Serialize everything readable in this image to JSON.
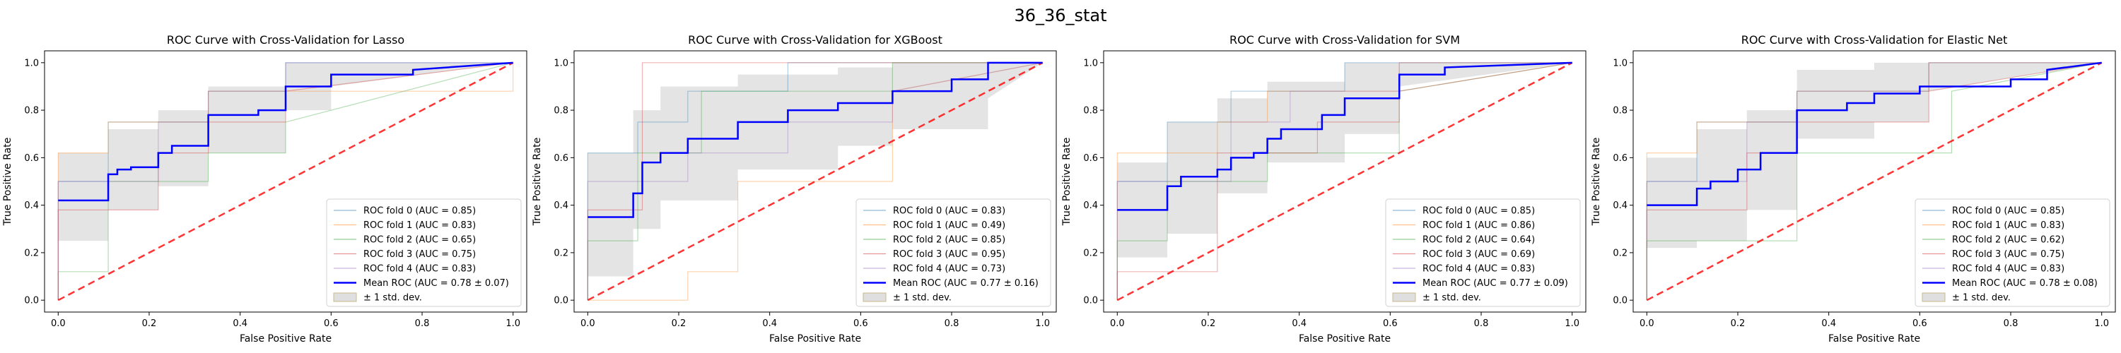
{
  "figure_title": "36_36_stat",
  "colors": {
    "fold": [
      "#1f77b4",
      "#ff7f0e",
      "#2ca02c",
      "#d62728",
      "#9467bd"
    ],
    "mean": "#0000ff",
    "chance": "#ff0000",
    "std_fill": "#bfbfbf",
    "legend_std_edge": "#c8b88a"
  },
  "chart_data": [
    {
      "type": "line",
      "title": "ROC Curve with Cross-Validation for Lasso",
      "xlabel": "False Positive Rate",
      "ylabel": "True Positive Rate",
      "xlim": [
        -0.03,
        1.03
      ],
      "ylim": [
        -0.05,
        1.05
      ],
      "xticks": [
        "0.0",
        "0.2",
        "0.4",
        "0.6",
        "0.8",
        "1.0"
      ],
      "yticks": [
        "0.0",
        "0.2",
        "0.4",
        "0.6",
        "0.8",
        "1.0"
      ],
      "legend_position": "lower right",
      "legend": [
        "ROC fold 0 (AUC = 0.85)",
        "ROC fold 1 (AUC = 0.83)",
        "ROC fold 2 (AUC = 0.65)",
        "ROC fold 3 (AUC = 0.75)",
        "ROC fold 4 (AUC = 0.83)",
        "Mean ROC (AUC = 0.78 ± 0.07)",
        "± 1 std. dev."
      ],
      "series": [
        {
          "name": "ROC fold 0 (AUC = 0.85)",
          "x": [
            0,
            0,
            0.11,
            0.11,
            0.33,
            0.33,
            0.5,
            0.5,
            1
          ],
          "y": [
            0,
            0.5,
            0.5,
            0.75,
            0.75,
            0.88,
            0.88,
            1,
            1
          ]
        },
        {
          "name": "ROC fold 1 (AUC = 0.83)",
          "x": [
            0,
            0,
            0.11,
            0.11,
            0.33,
            0.33,
            1,
            1
          ],
          "y": [
            0,
            0.62,
            0.62,
            0.75,
            0.75,
            0.88,
            0.88,
            1
          ]
        },
        {
          "name": "ROC fold 2 (AUC = 0.65)",
          "x": [
            0,
            0,
            0.11,
            0.11,
            0.33,
            0.33,
            0.5,
            0.5,
            1
          ],
          "y": [
            0,
            0.12,
            0.12,
            0.5,
            0.5,
            0.62,
            0.62,
            0.75,
            1
          ]
        },
        {
          "name": "ROC fold 3 (AUC = 0.75)",
          "x": [
            0,
            0,
            0.22,
            0.22,
            0.33,
            0.33,
            0.5,
            0.5,
            1
          ],
          "y": [
            0,
            0.38,
            0.38,
            0.62,
            0.62,
            0.75,
            0.75,
            0.88,
            1
          ]
        },
        {
          "name": "ROC fold 4 (AUC = 0.83)",
          "x": [
            0,
            0,
            0.22,
            0.22,
            0.33,
            0.33,
            0.5,
            0.5,
            1
          ],
          "y": [
            0,
            0.5,
            0.5,
            0.75,
            0.75,
            0.88,
            0.88,
            1,
            1
          ]
        },
        {
          "name": "Mean ROC (AUC = 0.78 ± 0.07)",
          "x": [
            0,
            0.11,
            0.11,
            0.13,
            0.13,
            0.16,
            0.16,
            0.22,
            0.22,
            0.25,
            0.25,
            0.33,
            0.33,
            0.44,
            0.44,
            0.5,
            0.5,
            0.6,
            0.6,
            0.78,
            0.78,
            1
          ],
          "y": [
            0.42,
            0.42,
            0.53,
            0.53,
            0.55,
            0.55,
            0.56,
            0.56,
            0.62,
            0.62,
            0.65,
            0.65,
            0.78,
            0.78,
            0.8,
            0.8,
            0.9,
            0.9,
            0.95,
            0.95,
            0.97,
            1
          ]
        },
        {
          "name": "± 1 std. dev.",
          "x": [
            0,
            0.11,
            0.11,
            0.22,
            0.22,
            0.33,
            0.33,
            0.5,
            0.5,
            0.6,
            0.6,
            1
          ],
          "upper": [
            0.62,
            0.62,
            0.72,
            0.72,
            0.8,
            0.8,
            0.9,
            0.9,
            1,
            1,
            1,
            1
          ],
          "lower": [
            0.25,
            0.25,
            0.38,
            0.38,
            0.48,
            0.48,
            0.62,
            0.62,
            0.8,
            0.8,
            0.9,
            1
          ]
        }
      ]
    },
    {
      "type": "line",
      "title": "ROC Curve with Cross-Validation for XGBoost",
      "xlabel": "False Positive Rate",
      "ylabel": "True Positive Rate",
      "xlim": [
        -0.03,
        1.03
      ],
      "ylim": [
        -0.05,
        1.05
      ],
      "xticks": [
        "0.0",
        "0.2",
        "0.4",
        "0.6",
        "0.8",
        "1.0"
      ],
      "yticks": [
        "0.0",
        "0.2",
        "0.4",
        "0.6",
        "0.8",
        "1.0"
      ],
      "legend_position": "lower right",
      "legend": [
        "ROC fold 0 (AUC = 0.83)",
        "ROC fold 1 (AUC = 0.49)",
        "ROC fold 2 (AUC = 0.85)",
        "ROC fold 3 (AUC = 0.95)",
        "ROC fold 4 (AUC = 0.73)",
        "Mean ROC (AUC = 0.77 ± 0.16)",
        "± 1 std. dev."
      ],
      "series": [
        {
          "name": "ROC fold 0 (AUC = 0.83)",
          "x": [
            0,
            0,
            0.11,
            0.11,
            0.22,
            0.22,
            0.44,
            0.44,
            1
          ],
          "y": [
            0,
            0.62,
            0.62,
            0.75,
            0.75,
            0.88,
            0.88,
            1,
            1
          ]
        },
        {
          "name": "ROC fold 1 (AUC = 0.49)",
          "x": [
            0,
            0.22,
            0.22,
            0.33,
            0.33,
            0.67,
            0.67,
            1
          ],
          "y": [
            0,
            0,
            0.12,
            0.12,
            0.5,
            0.5,
            0.88,
            1
          ]
        },
        {
          "name": "ROC fold 2 (AUC = 0.85)",
          "x": [
            0,
            0,
            0.11,
            0.11,
            0.25,
            0.25,
            0.67,
            0.67,
            1
          ],
          "y": [
            0,
            0.25,
            0.25,
            0.62,
            0.62,
            0.88,
            0.88,
            1,
            1
          ]
        },
        {
          "name": "ROC fold 3 (AUC = 0.95)",
          "x": [
            0,
            0,
            0.12,
            0.12,
            0.67,
            0.67,
            1
          ],
          "y": [
            0,
            0.38,
            0.38,
            1,
            1,
            1,
            1
          ]
        },
        {
          "name": "ROC fold 4 (AUC = 0.73)",
          "x": [
            0,
            0,
            0.22,
            0.22,
            0.44,
            0.44,
            0.67,
            0.67,
            1
          ],
          "y": [
            0,
            0.5,
            0.5,
            0.62,
            0.62,
            0.75,
            0.75,
            0.88,
            1
          ]
        },
        {
          "name": "Mean ROC (AUC = 0.77 ± 0.16)",
          "x": [
            0,
            0.1,
            0.1,
            0.12,
            0.12,
            0.16,
            0.16,
            0.22,
            0.22,
            0.33,
            0.33,
            0.44,
            0.44,
            0.55,
            0.55,
            0.67,
            0.67,
            0.8,
            0.8,
            0.88,
            0.88,
            1
          ],
          "y": [
            0.35,
            0.35,
            0.45,
            0.45,
            0.58,
            0.58,
            0.62,
            0.62,
            0.68,
            0.68,
            0.75,
            0.75,
            0.8,
            0.8,
            0.83,
            0.83,
            0.88,
            0.88,
            0.93,
            0.93,
            1,
            1
          ]
        },
        {
          "name": "± 1 std. dev.",
          "x": [
            0,
            0.1,
            0.1,
            0.16,
            0.16,
            0.33,
            0.33,
            0.55,
            0.55,
            0.67,
            0.67,
            0.88,
            0.88,
            1
          ],
          "upper": [
            0.62,
            0.62,
            0.8,
            0.8,
            0.9,
            0.9,
            0.95,
            0.95,
            0.98,
            0.98,
            1,
            1,
            1,
            1
          ],
          "lower": [
            0.1,
            0.1,
            0.3,
            0.3,
            0.42,
            0.42,
            0.55,
            0.55,
            0.65,
            0.65,
            0.72,
            0.72,
            0.85,
            1
          ]
        }
      ]
    },
    {
      "type": "line",
      "title": "ROC Curve with Cross-Validation for SVM",
      "xlabel": "False Positive Rate",
      "ylabel": "True Positive Rate",
      "xlim": [
        -0.03,
        1.03
      ],
      "ylim": [
        -0.05,
        1.05
      ],
      "xticks": [
        "0.0",
        "0.2",
        "0.4",
        "0.6",
        "0.8",
        "1.0"
      ],
      "yticks": [
        "0.0",
        "0.2",
        "0.4",
        "0.6",
        "0.8",
        "1.0"
      ],
      "legend_position": "lower right",
      "legend": [
        "ROC fold 0 (AUC = 0.85)",
        "ROC fold 1 (AUC = 0.86)",
        "ROC fold 2 (AUC = 0.64)",
        "ROC fold 3 (AUC = 0.69)",
        "ROC fold 4 (AUC = 0.83)",
        "Mean ROC (AUC = 0.77 ± 0.09)",
        "± 1 std. dev."
      ],
      "series": [
        {
          "name": "ROC fold 0 (AUC = 0.85)",
          "x": [
            0,
            0,
            0.11,
            0.11,
            0.25,
            0.25,
            0.5,
            0.5,
            1
          ],
          "y": [
            0,
            0.5,
            0.5,
            0.75,
            0.75,
            0.88,
            0.88,
            1,
            1
          ]
        },
        {
          "name": "ROC fold 1 (AUC = 0.86)",
          "x": [
            0,
            0,
            0.22,
            0.22,
            0.33,
            0.33,
            0.62,
            0.62,
            1
          ],
          "y": [
            0,
            0.62,
            0.62,
            0.75,
            0.75,
            0.88,
            0.88,
            1,
            1
          ]
        },
        {
          "name": "ROC fold 2 (AUC = 0.64)",
          "x": [
            0,
            0,
            0.11,
            0.11,
            0.33,
            0.33,
            0.62,
            0.62,
            1
          ],
          "y": [
            0,
            0.25,
            0.25,
            0.5,
            0.5,
            0.62,
            0.62,
            0.88,
            1
          ]
        },
        {
          "name": "ROC fold 3 (AUC = 0.69)",
          "x": [
            0,
            0,
            0.22,
            0.22,
            0.44,
            0.44,
            0.62,
            0.62,
            1
          ],
          "y": [
            0,
            0.12,
            0.12,
            0.62,
            0.62,
            0.75,
            0.75,
            0.88,
            1
          ]
        },
        {
          "name": "ROC fold 4 (AUC = 0.83)",
          "x": [
            0,
            0,
            0.25,
            0.25,
            0.38,
            0.38,
            0.62,
            0.62,
            1
          ],
          "y": [
            0,
            0.5,
            0.5,
            0.75,
            0.75,
            0.88,
            0.88,
            1,
            1
          ]
        },
        {
          "name": "Mean ROC (AUC = 0.77 ± 0.09)",
          "x": [
            0,
            0.11,
            0.11,
            0.14,
            0.14,
            0.22,
            0.22,
            0.25,
            0.25,
            0.3,
            0.3,
            0.33,
            0.33,
            0.36,
            0.36,
            0.45,
            0.45,
            0.5,
            0.5,
            0.62,
            0.62,
            0.72,
            0.72,
            1
          ],
          "y": [
            0.38,
            0.38,
            0.48,
            0.48,
            0.52,
            0.52,
            0.55,
            0.55,
            0.6,
            0.6,
            0.62,
            0.62,
            0.68,
            0.68,
            0.72,
            0.72,
            0.78,
            0.78,
            0.85,
            0.85,
            0.95,
            0.95,
            0.98,
            1
          ]
        },
        {
          "name": "± 1 std. dev.",
          "x": [
            0,
            0.11,
            0.11,
            0.22,
            0.22,
            0.33,
            0.33,
            0.5,
            0.5,
            0.62,
            0.62,
            1
          ],
          "upper": [
            0.58,
            0.58,
            0.75,
            0.75,
            0.85,
            0.85,
            0.92,
            0.92,
            1,
            1,
            1,
            1
          ],
          "lower": [
            0.18,
            0.18,
            0.28,
            0.28,
            0.45,
            0.45,
            0.58,
            0.58,
            0.7,
            0.7,
            0.9,
            1
          ]
        }
      ]
    },
    {
      "type": "line",
      "title": "ROC Curve with Cross-Validation for Elastic Net",
      "xlabel": "False Positive Rate",
      "ylabel": "True Positive Rate",
      "xlim": [
        -0.03,
        1.03
      ],
      "ylim": [
        -0.05,
        1.05
      ],
      "xticks": [
        "0.0",
        "0.2",
        "0.4",
        "0.6",
        "0.8",
        "1.0"
      ],
      "yticks": [
        "0.0",
        "0.2",
        "0.4",
        "0.6",
        "0.8",
        "1.0"
      ],
      "legend_position": "lower right",
      "legend": [
        "ROC fold 0 (AUC = 0.85)",
        "ROC fold 1 (AUC = 0.83)",
        "ROC fold 2 (AUC = 0.62)",
        "ROC fold 3 (AUC = 0.75)",
        "ROC fold 4 (AUC = 0.83)",
        "Mean ROC (AUC = 0.78 ± 0.08)",
        "± 1 std. dev."
      ],
      "series": [
        {
          "name": "ROC fold 0 (AUC = 0.85)",
          "x": [
            0,
            0,
            0.11,
            0.11,
            0.33,
            0.33,
            0.62,
            0.62,
            1
          ],
          "y": [
            0,
            0.5,
            0.5,
            0.75,
            0.75,
            0.88,
            0.88,
            1,
            1
          ]
        },
        {
          "name": "ROC fold 1 (AUC = 0.83)",
          "x": [
            0,
            0,
            0.11,
            0.11,
            0.33,
            0.33,
            0.62,
            0.62,
            1
          ],
          "y": [
            0,
            0.62,
            0.62,
            0.75,
            0.75,
            0.88,
            0.88,
            1,
            1
          ]
        },
        {
          "name": "ROC fold 2 (AUC = 0.62)",
          "x": [
            0,
            0,
            0.11,
            0.11,
            0.33,
            0.33,
            0.67,
            0.67,
            1
          ],
          "y": [
            0,
            0.25,
            0.25,
            0.25,
            0.25,
            0.62,
            0.62,
            0.88,
            1
          ]
        },
        {
          "name": "ROC fold 3 (AUC = 0.75)",
          "x": [
            0,
            0,
            0.22,
            0.22,
            0.33,
            0.33,
            0.62,
            0.62,
            1
          ],
          "y": [
            0,
            0.38,
            0.38,
            0.62,
            0.62,
            0.75,
            0.75,
            0.88,
            1
          ]
        },
        {
          "name": "ROC fold 4 (AUC = 0.83)",
          "x": [
            0,
            0,
            0.22,
            0.22,
            0.33,
            0.33,
            0.62,
            0.62,
            1
          ],
          "y": [
            0,
            0.5,
            0.5,
            0.75,
            0.75,
            0.88,
            0.88,
            1,
            1
          ]
        },
        {
          "name": "Mean ROC (AUC = 0.78 ± 0.08)",
          "x": [
            0,
            0.11,
            0.11,
            0.14,
            0.14,
            0.2,
            0.2,
            0.25,
            0.25,
            0.33,
            0.33,
            0.44,
            0.44,
            0.5,
            0.5,
            0.6,
            0.6,
            0.8,
            0.8,
            0.88,
            0.88,
            1
          ],
          "y": [
            0.4,
            0.4,
            0.47,
            0.47,
            0.5,
            0.5,
            0.55,
            0.55,
            0.62,
            0.62,
            0.8,
            0.8,
            0.83,
            0.83,
            0.87,
            0.87,
            0.9,
            0.9,
            0.93,
            0.93,
            0.97,
            1
          ]
        },
        {
          "name": "± 1 std. dev.",
          "x": [
            0,
            0.11,
            0.11,
            0.22,
            0.22,
            0.33,
            0.33,
            0.5,
            0.5,
            0.62,
            0.62,
            1
          ],
          "upper": [
            0.6,
            0.6,
            0.72,
            0.72,
            0.8,
            0.8,
            0.97,
            0.97,
            1,
            1,
            1,
            1
          ],
          "lower": [
            0.22,
            0.22,
            0.25,
            0.25,
            0.38,
            0.38,
            0.68,
            0.68,
            0.75,
            0.75,
            0.88,
            1
          ]
        }
      ]
    }
  ]
}
